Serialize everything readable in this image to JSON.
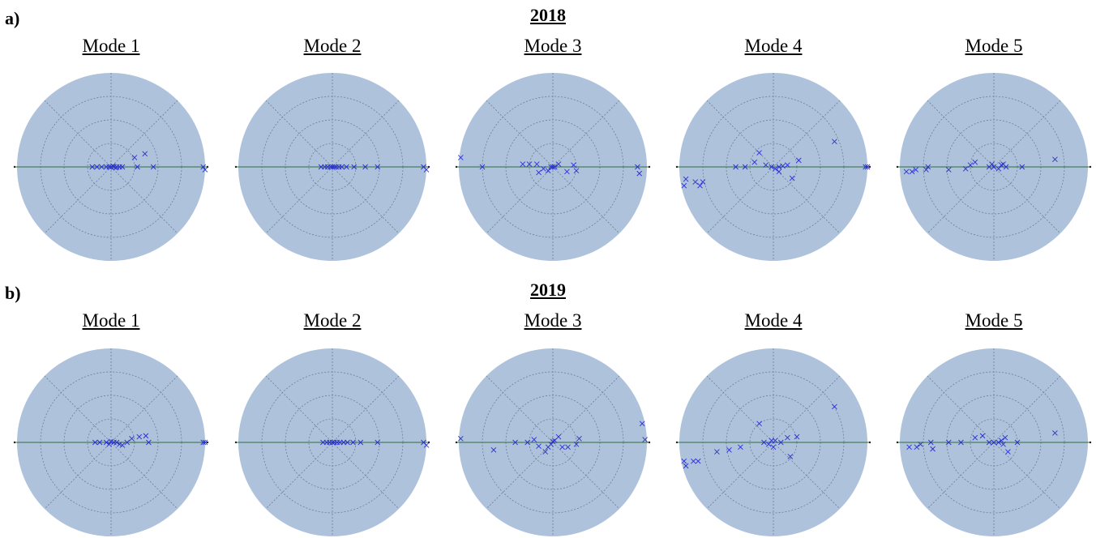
{
  "panels": [
    {
      "label": "a)",
      "year": "2018"
    },
    {
      "label": "b)",
      "year": "2019"
    }
  ],
  "colors": {
    "disk": "#aec2dc",
    "grid": "#6f7f96",
    "axis": "#2e6f3c",
    "marker": "#2a2fd2"
  },
  "chart_data": [
    {
      "type": "scatter",
      "panel": "a",
      "year": "2018",
      "title": "Mode 1",
      "coordinates": "polar (unit disk)",
      "points": [
        [
          -0.2,
          0
        ],
        [
          -0.15,
          0
        ],
        [
          -0.1,
          0
        ],
        [
          -0.05,
          0
        ],
        [
          -0.02,
          0
        ],
        [
          0,
          0
        ],
        [
          0.03,
          0
        ],
        [
          0.06,
          0
        ],
        [
          0.09,
          0
        ],
        [
          0.12,
          0
        ],
        [
          0.02,
          0.01
        ],
        [
          0.05,
          -0.01
        ],
        [
          0.25,
          0.1
        ],
        [
          0.36,
          0.14
        ],
        [
          0.28,
          0
        ],
        [
          0.45,
          0
        ],
        [
          0.98,
          0
        ],
        [
          1.0,
          -0.03
        ]
      ]
    },
    {
      "type": "scatter",
      "panel": "a",
      "year": "2018",
      "title": "Mode 2",
      "coordinates": "polar (unit disk)",
      "points": [
        [
          -0.12,
          0
        ],
        [
          -0.08,
          0
        ],
        [
          -0.05,
          0
        ],
        [
          -0.02,
          0
        ],
        [
          0,
          0
        ],
        [
          0.02,
          0
        ],
        [
          0.04,
          0
        ],
        [
          0.07,
          0
        ],
        [
          0.1,
          0
        ],
        [
          0.15,
          0
        ],
        [
          0.23,
          0
        ],
        [
          0.35,
          0
        ],
        [
          0.48,
          0
        ],
        [
          0.97,
          0
        ],
        [
          1.0,
          -0.03
        ]
      ]
    },
    {
      "type": "scatter",
      "panel": "a",
      "year": "2018",
      "title": "Mode 3",
      "coordinates": "polar (unit disk)",
      "points": [
        [
          -0.98,
          0.1
        ],
        [
          -0.75,
          0
        ],
        [
          -0.32,
          0.03
        ],
        [
          -0.25,
          0.03
        ],
        [
          -0.17,
          0.03
        ],
        [
          -0.15,
          -0.06
        ],
        [
          -0.1,
          -0.02
        ],
        [
          -0.05,
          -0.04
        ],
        [
          -0.02,
          0
        ],
        [
          0,
          0
        ],
        [
          0.02,
          0
        ],
        [
          0.06,
          0.03
        ],
        [
          0.15,
          -0.05
        ],
        [
          0.22,
          0.02
        ],
        [
          0.25,
          -0.04
        ],
        [
          0.9,
          0
        ],
        [
          0.92,
          -0.07
        ]
      ]
    },
    {
      "type": "scatter",
      "panel": "a",
      "year": "2018",
      "title": "Mode 4",
      "coordinates": "polar (unit disk)",
      "points": [
        [
          -0.93,
          -0.13
        ],
        [
          -0.95,
          -0.2
        ],
        [
          -0.83,
          -0.16
        ],
        [
          -0.78,
          -0.2
        ],
        [
          -0.75,
          -0.16
        ],
        [
          -0.4,
          0
        ],
        [
          -0.3,
          0
        ],
        [
          -0.2,
          0.05
        ],
        [
          -0.15,
          0.15
        ],
        [
          -0.08,
          0.02
        ],
        [
          -0.02,
          0
        ],
        [
          0.02,
          -0.02
        ],
        [
          0.06,
          0
        ],
        [
          0.1,
          0.01
        ],
        [
          0.15,
          0.02
        ],
        [
          0.27,
          0.07
        ],
        [
          0.2,
          -0.12
        ],
        [
          0.06,
          -0.05
        ],
        [
          0.65,
          0.27
        ],
        [
          0.98,
          0
        ],
        [
          1.0,
          0
        ]
      ]
    },
    {
      "type": "scatter",
      "panel": "a",
      "year": "2018",
      "title": "Mode 5",
      "coordinates": "polar (unit disk)",
      "points": [
        [
          -0.93,
          -0.05
        ],
        [
          -0.87,
          -0.05
        ],
        [
          -0.83,
          -0.03
        ],
        [
          -0.72,
          -0.03
        ],
        [
          -0.7,
          0
        ],
        [
          -0.48,
          -0.03
        ],
        [
          -0.3,
          -0.02
        ],
        [
          -0.25,
          0.02
        ],
        [
          -0.2,
          0.05
        ],
        [
          -0.05,
          0
        ],
        [
          0,
          0
        ],
        [
          0.05,
          -0.02
        ],
        [
          0.08,
          0.02
        ],
        [
          0.1,
          0.03
        ],
        [
          0.13,
          0
        ],
        [
          0.3,
          0
        ],
        [
          0.65,
          0.08
        ],
        [
          -0.02,
          0.03
        ]
      ]
    },
    {
      "type": "scatter",
      "panel": "b",
      "year": "2019",
      "title": "Mode 1",
      "coordinates": "polar (unit disk)",
      "points": [
        [
          -0.17,
          0
        ],
        [
          -0.12,
          0
        ],
        [
          -0.05,
          0
        ],
        [
          -0.02,
          -0.02
        ],
        [
          0,
          0.01
        ],
        [
          0.03,
          0
        ],
        [
          0.06,
          0
        ],
        [
          0.09,
          -0.02
        ],
        [
          0.12,
          -0.03
        ],
        [
          0.17,
          0
        ],
        [
          0.22,
          0.04
        ],
        [
          0.3,
          0.06
        ],
        [
          0.37,
          0.07
        ],
        [
          0.4,
          0
        ],
        [
          0.98,
          0
        ],
        [
          1.0,
          0
        ]
      ]
    },
    {
      "type": "scatter",
      "panel": "b",
      "year": "2019",
      "title": "Mode 2",
      "coordinates": "polar (unit disk)",
      "points": [
        [
          -0.1,
          0
        ],
        [
          -0.06,
          0
        ],
        [
          -0.03,
          0
        ],
        [
          0,
          0
        ],
        [
          0.02,
          0
        ],
        [
          0.05,
          0
        ],
        [
          0.08,
          0
        ],
        [
          0.12,
          0
        ],
        [
          0.16,
          0
        ],
        [
          0.22,
          0
        ],
        [
          0.3,
          0
        ],
        [
          0.48,
          0
        ],
        [
          0.97,
          0
        ],
        [
          1.0,
          -0.03
        ]
      ]
    },
    {
      "type": "scatter",
      "panel": "b",
      "year": "2019",
      "title": "Mode 3",
      "coordinates": "polar (unit disk)",
      "points": [
        [
          -0.98,
          0.04
        ],
        [
          -0.63,
          -0.08
        ],
        [
          -0.4,
          0
        ],
        [
          -0.27,
          0
        ],
        [
          -0.2,
          0.03
        ],
        [
          -0.15,
          -0.04
        ],
        [
          -0.08,
          -0.1
        ],
        [
          -0.05,
          -0.05
        ],
        [
          -0.02,
          -0.02
        ],
        [
          0,
          0.01
        ],
        [
          0.02,
          0.02
        ],
        [
          0.06,
          0.06
        ],
        [
          0.1,
          -0.05
        ],
        [
          0.16,
          -0.05
        ],
        [
          0.25,
          -0.02
        ],
        [
          0.28,
          0.04
        ],
        [
          0.95,
          0.2
        ],
        [
          0.98,
          0.03
        ]
      ]
    },
    {
      "type": "scatter",
      "panel": "b",
      "year": "2019",
      "title": "Mode 4",
      "coordinates": "polar (unit disk)",
      "points": [
        [
          -0.95,
          -0.2
        ],
        [
          -0.93,
          -0.25
        ],
        [
          -0.85,
          -0.2
        ],
        [
          -0.8,
          -0.2
        ],
        [
          -0.6,
          -0.1
        ],
        [
          -0.47,
          -0.08
        ],
        [
          -0.35,
          -0.05
        ],
        [
          -0.15,
          0.2
        ],
        [
          -0.1,
          0
        ],
        [
          -0.05,
          -0.02
        ],
        [
          -0.02,
          0.02
        ],
        [
          0,
          -0.05
        ],
        [
          0.02,
          0.02
        ],
        [
          0.08,
          0
        ],
        [
          0.15,
          0.05
        ],
        [
          0.18,
          -0.15
        ],
        [
          0.25,
          0.06
        ],
        [
          0.65,
          0.38
        ]
      ]
    },
    {
      "type": "scatter",
      "panel": "b",
      "year": "2019",
      "title": "Mode 5",
      "coordinates": "polar (unit disk)",
      "points": [
        [
          -0.9,
          -0.05
        ],
        [
          -0.82,
          -0.05
        ],
        [
          -0.78,
          -0.02
        ],
        [
          -0.67,
          0
        ],
        [
          -0.65,
          -0.07
        ],
        [
          -0.48,
          0
        ],
        [
          -0.35,
          0
        ],
        [
          -0.2,
          0.05
        ],
        [
          -0.12,
          0.07
        ],
        [
          -0.05,
          0
        ],
        [
          0,
          0
        ],
        [
          0.05,
          0
        ],
        [
          0.08,
          0.02
        ],
        [
          0.1,
          -0.02
        ],
        [
          0.12,
          0.05
        ],
        [
          0.15,
          -0.1
        ],
        [
          0.25,
          0
        ],
        [
          0.65,
          0.1
        ]
      ]
    }
  ]
}
